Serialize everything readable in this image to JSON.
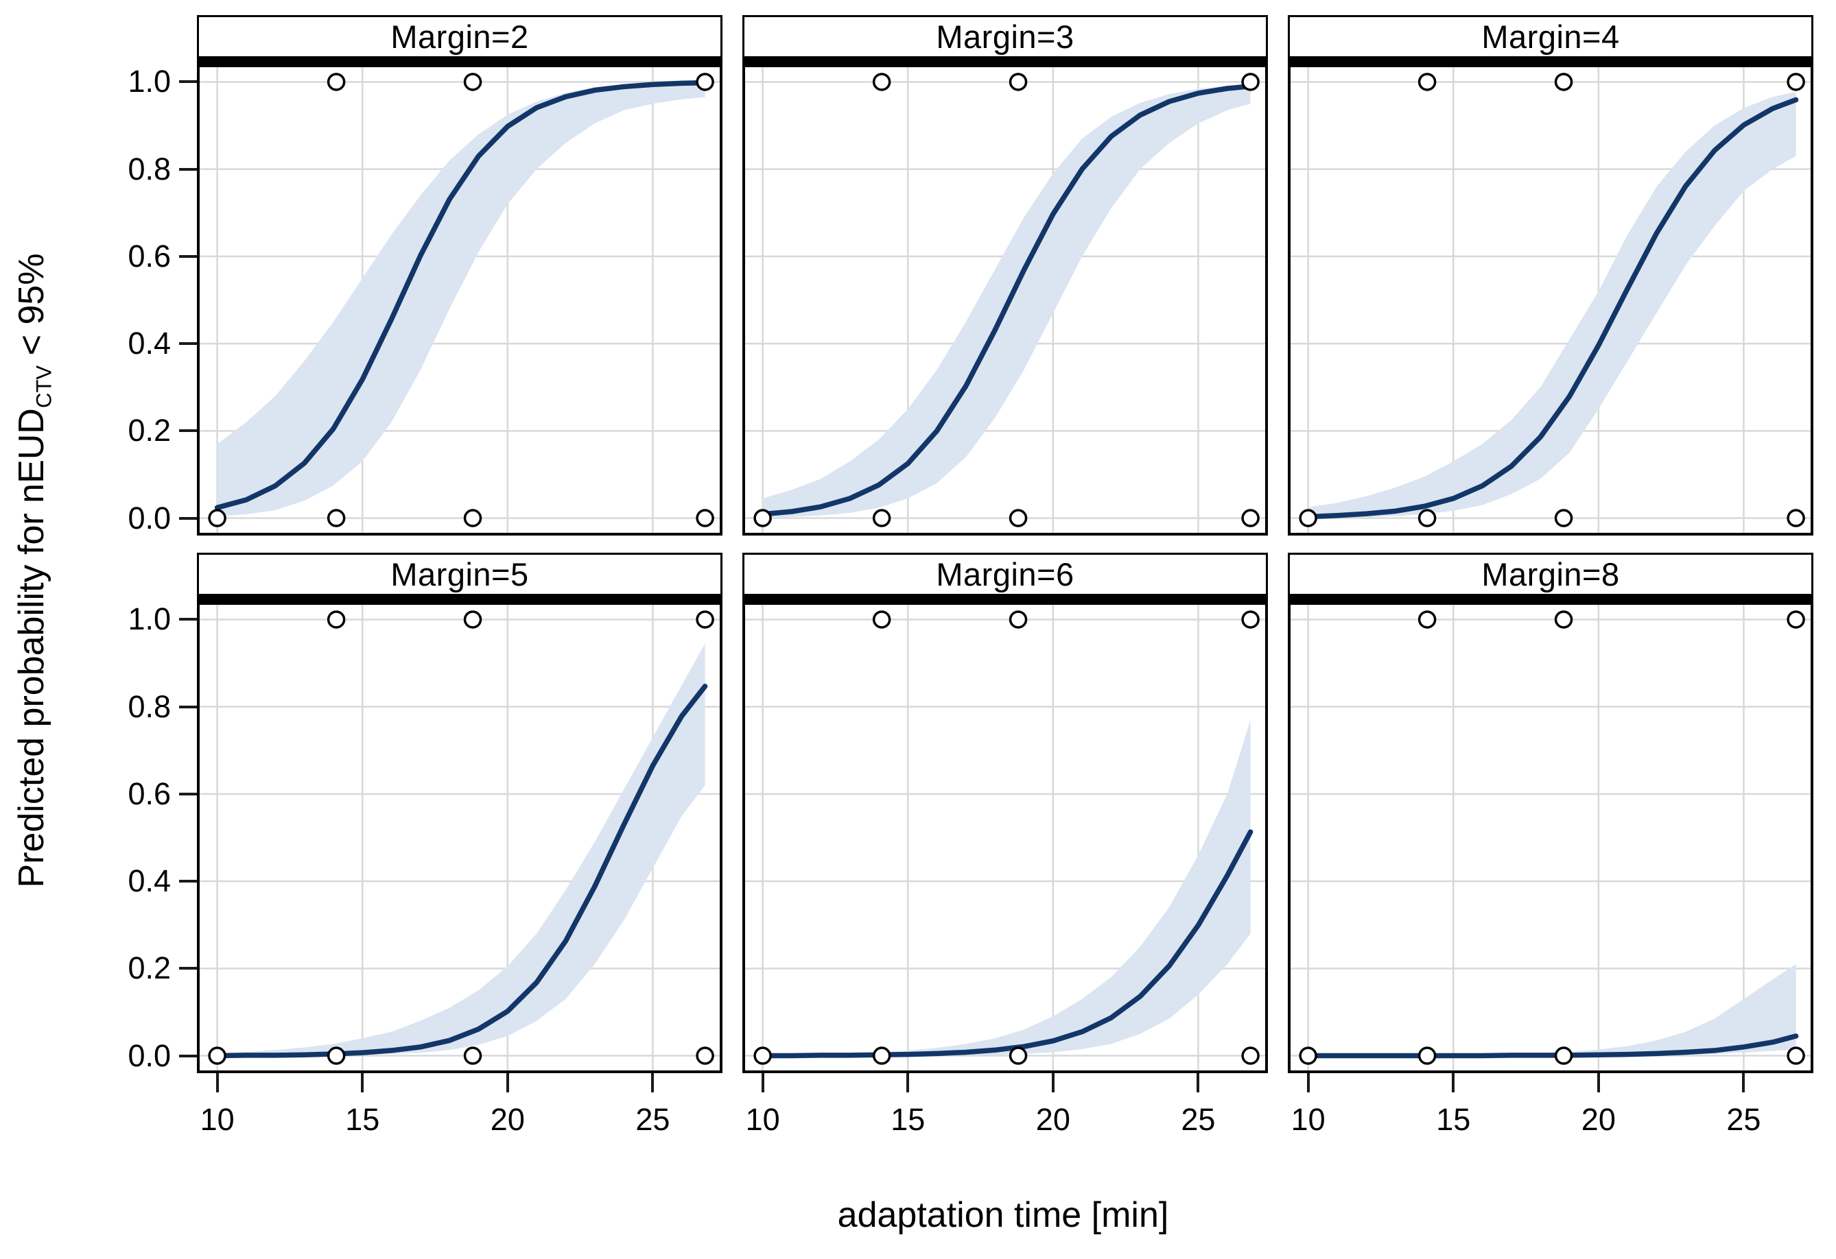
{
  "figure": {
    "xlabel": "adaptation time [min]",
    "ylabel": {
      "pre": "Predicted probability for nEUD",
      "sub": "CTV",
      "post": " < 95%"
    }
  },
  "chart_data": {
    "type": "line",
    "description": "Faceted logistic-fit curves of predicted probability vs adaptation time, one panel per PTV margin, with 95% confidence bands and observed binary outcomes plotted as open circles at 0 and 1.",
    "facet_by": "Margin",
    "grid": "on",
    "legend": "none",
    "xlabel": "adaptation time [min]",
    "ylabel": "Predicted probability for nEUD_CTV < 95%",
    "xlim": [
      9.3,
      27.4
    ],
    "ylim": [
      -0.04,
      1.04
    ],
    "xtick_values": [
      10,
      15,
      20,
      25
    ],
    "xtick_labels": [
      "10",
      "15",
      "20",
      "25"
    ],
    "ytick_values": [
      0.0,
      0.2,
      0.4,
      0.6,
      0.8,
      1.0
    ],
    "ytick_labels": [
      "0.0",
      "0.2",
      "0.4",
      "0.6",
      "0.8",
      "1.0"
    ],
    "colors": {
      "curve": "#123668",
      "band": "#dbe4f1",
      "gridline": "#d8d8d8",
      "border": "#000000",
      "point_stroke": "#000000",
      "point_fill": "#ffffff"
    },
    "observed_points": {
      "prob_one_x": [
        14.1,
        18.8,
        26.8
      ],
      "prob_one_y": 1.0,
      "prob_zero_x": [
        10,
        14.1,
        18.8,
        26.8
      ],
      "prob_zero_y": 0.0
    },
    "x": [
      10,
      11,
      12,
      13,
      14,
      15,
      16,
      17,
      18,
      19,
      20,
      21,
      22,
      23,
      24,
      25,
      26,
      26.8
    ],
    "panels": [
      {
        "title": "Margin=2",
        "margin": 2,
        "fit": [
          0.024,
          0.042,
          0.074,
          0.126,
          0.205,
          0.318,
          0.456,
          0.602,
          0.731,
          0.83,
          0.898,
          0.941,
          0.966,
          0.981,
          0.989,
          0.994,
          0.997,
          0.998
        ],
        "lower": [
          0.004,
          0.009,
          0.018,
          0.04,
          0.075,
          0.13,
          0.22,
          0.34,
          0.48,
          0.61,
          0.72,
          0.8,
          0.86,
          0.905,
          0.935,
          0.95,
          0.96,
          0.965
        ],
        "upper": [
          0.17,
          0.22,
          0.28,
          0.36,
          0.45,
          0.55,
          0.65,
          0.74,
          0.82,
          0.88,
          0.925,
          0.955,
          0.975,
          0.988,
          0.995,
          0.997,
          0.999,
          1.0
        ]
      },
      {
        "title": "Margin=3",
        "margin": 3,
        "fit": [
          0.009,
          0.015,
          0.026,
          0.045,
          0.076,
          0.125,
          0.2,
          0.303,
          0.431,
          0.569,
          0.697,
          0.8,
          0.875,
          0.924,
          0.955,
          0.974,
          0.985,
          0.99
        ],
        "lower": [
          0.001,
          0.003,
          0.006,
          0.012,
          0.024,
          0.045,
          0.08,
          0.14,
          0.23,
          0.34,
          0.47,
          0.6,
          0.71,
          0.8,
          0.86,
          0.905,
          0.935,
          0.95
        ],
        "upper": [
          0.045,
          0.065,
          0.09,
          0.13,
          0.18,
          0.25,
          0.34,
          0.45,
          0.57,
          0.69,
          0.79,
          0.87,
          0.92,
          0.952,
          0.972,
          0.984,
          0.991,
          0.995
        ]
      },
      {
        "title": "Margin=4",
        "margin": 4,
        "fit": [
          0.003,
          0.006,
          0.01,
          0.016,
          0.027,
          0.045,
          0.074,
          0.119,
          0.186,
          0.279,
          0.396,
          0.526,
          0.653,
          0.761,
          0.843,
          0.901,
          0.939,
          0.959
        ],
        "lower": [
          0.0,
          0.001,
          0.002,
          0.005,
          0.009,
          0.017,
          0.03,
          0.055,
          0.09,
          0.15,
          0.25,
          0.36,
          0.47,
          0.58,
          0.67,
          0.75,
          0.8,
          0.83
        ],
        "upper": [
          0.025,
          0.035,
          0.05,
          0.07,
          0.095,
          0.13,
          0.17,
          0.225,
          0.3,
          0.41,
          0.52,
          0.65,
          0.76,
          0.84,
          0.9,
          0.94,
          0.966,
          0.977
        ]
      },
      {
        "title": "Margin=5",
        "margin": 5,
        "fit": [
          0.0,
          0.001,
          0.001,
          0.002,
          0.004,
          0.007,
          0.012,
          0.02,
          0.035,
          0.061,
          0.102,
          0.168,
          0.263,
          0.388,
          0.529,
          0.665,
          0.779,
          0.847
        ],
        "lower": [
          0.0,
          0.0,
          0.0,
          0.0,
          0.001,
          0.002,
          0.004,
          0.007,
          0.013,
          0.025,
          0.045,
          0.08,
          0.13,
          0.21,
          0.31,
          0.43,
          0.55,
          0.62
        ],
        "upper": [
          0.006,
          0.009,
          0.013,
          0.019,
          0.027,
          0.04,
          0.055,
          0.08,
          0.11,
          0.15,
          0.205,
          0.28,
          0.38,
          0.49,
          0.61,
          0.73,
          0.85,
          0.945
        ]
      },
      {
        "title": "Margin=6",
        "margin": 6,
        "fit": [
          0.0,
          0.0,
          0.001,
          0.001,
          0.002,
          0.003,
          0.005,
          0.008,
          0.013,
          0.021,
          0.034,
          0.055,
          0.087,
          0.136,
          0.206,
          0.299,
          0.413,
          0.513
        ],
        "lower": [
          0.0,
          0.0,
          0.0,
          0.0,
          0.0,
          0.0,
          0.001,
          0.001,
          0.002,
          0.004,
          0.008,
          0.015,
          0.027,
          0.05,
          0.085,
          0.14,
          0.21,
          0.28
        ],
        "upper": [
          0.002,
          0.003,
          0.004,
          0.006,
          0.008,
          0.012,
          0.018,
          0.027,
          0.04,
          0.06,
          0.09,
          0.13,
          0.18,
          0.25,
          0.34,
          0.46,
          0.6,
          0.77
        ]
      },
      {
        "title": "Margin=8",
        "margin": 8,
        "fit": [
          0.0,
          0.0,
          0.0,
          0.0,
          0.0,
          0.0,
          0.0,
          0.001,
          0.001,
          0.001,
          0.002,
          0.003,
          0.005,
          0.008,
          0.012,
          0.02,
          0.031,
          0.045
        ],
        "lower": [
          0.0,
          0.0,
          0.0,
          0.0,
          0.0,
          0.0,
          0.0,
          0.0,
          0.0,
          0.0,
          0.0,
          0.001,
          0.001,
          0.002,
          0.004,
          0.007,
          0.011,
          0.014
        ],
        "upper": [
          0.001,
          0.001,
          0.001,
          0.002,
          0.002,
          0.003,
          0.004,
          0.005,
          0.006,
          0.009,
          0.014,
          0.022,
          0.035,
          0.055,
          0.085,
          0.13,
          0.175,
          0.21
        ]
      }
    ]
  }
}
